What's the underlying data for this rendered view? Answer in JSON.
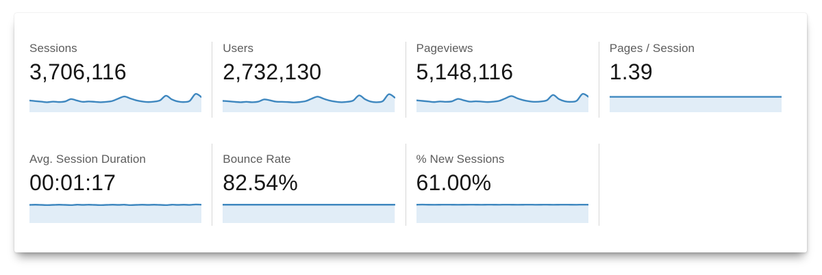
{
  "colors": {
    "spark_line": "#3e87bf",
    "spark_fill": "#e1edf7",
    "divider": "#d6d6d6",
    "label_text": "#5c5c5c",
    "value_text": "#161616"
  },
  "cards": [
    {
      "label": "Sessions",
      "value": "3,706,116",
      "sparkline": [
        0.52,
        0.49,
        0.46,
        0.43,
        0.46,
        0.44,
        0.47,
        0.6,
        0.52,
        0.45,
        0.47,
        0.45,
        0.43,
        0.45,
        0.5,
        0.63,
        0.74,
        0.63,
        0.53,
        0.47,
        0.44,
        0.46,
        0.53,
        0.78,
        0.58,
        0.47,
        0.44,
        0.5,
        0.88,
        0.7
      ]
    },
    {
      "label": "Users",
      "value": "2,732,130",
      "sparkline": [
        0.5,
        0.48,
        0.45,
        0.43,
        0.45,
        0.43,
        0.46,
        0.58,
        0.53,
        0.46,
        0.45,
        0.44,
        0.42,
        0.44,
        0.49,
        0.62,
        0.73,
        0.62,
        0.52,
        0.46,
        0.43,
        0.45,
        0.52,
        0.8,
        0.59,
        0.46,
        0.43,
        0.49,
        0.86,
        0.68
      ]
    },
    {
      "label": "Pageviews",
      "value": "5,148,116",
      "sparkline": [
        0.53,
        0.5,
        0.47,
        0.44,
        0.47,
        0.45,
        0.48,
        0.61,
        0.53,
        0.46,
        0.48,
        0.46,
        0.44,
        0.46,
        0.51,
        0.64,
        0.76,
        0.64,
        0.54,
        0.48,
        0.45,
        0.47,
        0.54,
        0.82,
        0.6,
        0.48,
        0.45,
        0.51,
        0.88,
        0.72
      ]
    },
    {
      "label": "Pages / Session",
      "value": "1.39",
      "sparkline": [
        0.72,
        0.72,
        0.72,
        0.72,
        0.72,
        0.72,
        0.72,
        0.72,
        0.72,
        0.72,
        0.72,
        0.72,
        0.72,
        0.72,
        0.72,
        0.72,
        0.72,
        0.72,
        0.72,
        0.72,
        0.72,
        0.72,
        0.72,
        0.72,
        0.72,
        0.72,
        0.72,
        0.72,
        0.72,
        0.72
      ]
    },
    {
      "label": "Avg. Session Duration",
      "value": "00:01:17",
      "sparkline": [
        0.87,
        0.88,
        0.87,
        0.86,
        0.87,
        0.88,
        0.87,
        0.86,
        0.88,
        0.87,
        0.88,
        0.87,
        0.86,
        0.87,
        0.88,
        0.87,
        0.88,
        0.86,
        0.87,
        0.88,
        0.87,
        0.88,
        0.87,
        0.86,
        0.88,
        0.87,
        0.88,
        0.87,
        0.89,
        0.88
      ]
    },
    {
      "label": "Bounce Rate",
      "value": "82.54%",
      "sparkline": [
        0.88,
        0.88,
        0.88,
        0.88,
        0.88,
        0.88,
        0.88,
        0.88,
        0.88,
        0.88,
        0.88,
        0.88,
        0.88,
        0.88,
        0.88,
        0.88,
        0.88,
        0.88,
        0.88,
        0.88,
        0.88,
        0.88,
        0.88,
        0.88,
        0.88,
        0.88,
        0.88,
        0.88,
        0.88,
        0.88
      ]
    },
    {
      "label": "% New Sessions",
      "value": "61.00%",
      "sparkline": [
        0.88,
        0.885,
        0.88,
        0.878,
        0.88,
        0.882,
        0.88,
        0.878,
        0.88,
        0.883,
        0.88,
        0.878,
        0.881,
        0.88,
        0.879,
        0.882,
        0.88,
        0.878,
        0.88,
        0.882,
        0.879,
        0.88,
        0.881,
        0.878,
        0.88,
        0.882,
        0.88,
        0.879,
        0.883,
        0.88
      ]
    }
  ]
}
